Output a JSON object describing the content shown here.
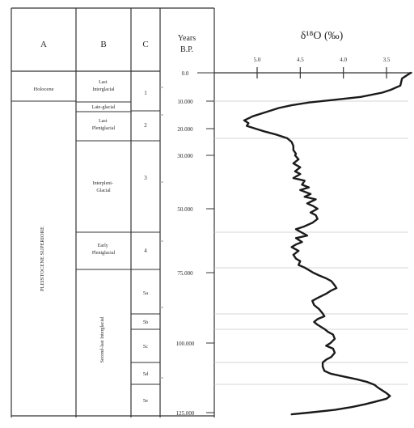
{
  "headers": {
    "col_a": "A",
    "col_b": "B",
    "col_c": "C",
    "years_line1": "Years",
    "years_line2": "B.P.",
    "isotope_title": "δ¹⁸O (‰)"
  },
  "isotope_ticks": [
    "5.0",
    "4.5",
    "4.0",
    "3.5"
  ],
  "epochs": [
    {
      "label": "Holocene"
    },
    {
      "label": "PLEISTOCENE SUPERIORE",
      "vertical": true
    }
  ],
  "phases": [
    {
      "label": "Last Interglacial",
      "lines": [
        "Last",
        "Interglacial"
      ]
    },
    {
      "label": "Late-glacial",
      "lines": [
        "Late-glacial"
      ]
    },
    {
      "label": "Last Pleniglacial",
      "lines": [
        "Last",
        "Pleniglacial"
      ]
    },
    {
      "label": "Interpleni-Glacial",
      "lines": [
        "Interpleni-",
        "Glacial"
      ]
    },
    {
      "label": "Early Pleniglacial",
      "lines": [
        "Early",
        "Pleniglacial"
      ]
    },
    {
      "label": "Second-last Interglacial",
      "lines": [
        "Second-last Interglacial"
      ],
      "vertical": true
    }
  ],
  "stages": [
    "1",
    "2",
    "3",
    "4",
    "5a",
    "5b",
    "5c",
    "5d",
    "5e"
  ],
  "years": [
    "0.0",
    "10.000",
    "20.000",
    "30.000",
    "50.000",
    "75.000",
    "100.000",
    "125.000"
  ],
  "chart_data": {
    "type": "line",
    "title": "δ¹⁸O (‰)",
    "xlabel": "δ¹⁸O (‰)",
    "ylabel": "Years B.P.",
    "x_ticks": [
      5.0,
      4.5,
      4.0,
      3.5
    ],
    "xlim": [
      5.25,
      3.2
    ],
    "y_ticks": [
      0,
      10000,
      20000,
      30000,
      50000,
      75000,
      100000,
      125000
    ],
    "y_axis_piecewise": true,
    "series": [
      {
        "points": [
          [
            3.22,
            0
          ],
          [
            3.32,
            2000
          ],
          [
            3.34,
            4500
          ],
          [
            3.45,
            6000
          ],
          [
            3.55,
            7000
          ],
          [
            3.8,
            8500
          ],
          [
            4.1,
            9500
          ],
          [
            4.4,
            10500
          ],
          [
            4.6,
            11500
          ],
          [
            4.75,
            12500
          ],
          [
            4.9,
            14000
          ],
          [
            5.05,
            15500
          ],
          [
            5.15,
            17000
          ],
          [
            5.1,
            18000
          ],
          [
            5.12,
            19000
          ],
          [
            5.02,
            20000
          ],
          [
            4.92,
            21000
          ],
          [
            4.78,
            22200
          ],
          [
            4.65,
            23600
          ],
          [
            4.6,
            25000
          ],
          [
            4.58,
            26500
          ],
          [
            4.58,
            28000
          ],
          [
            4.55,
            29400
          ],
          [
            4.56,
            30000
          ],
          [
            4.52,
            31500
          ],
          [
            4.58,
            33000
          ],
          [
            4.5,
            34500
          ],
          [
            4.56,
            36000
          ],
          [
            4.5,
            37000
          ],
          [
            4.58,
            38500
          ],
          [
            4.45,
            39500
          ],
          [
            4.48,
            41000
          ],
          [
            4.4,
            42000
          ],
          [
            4.5,
            43000
          ],
          [
            4.38,
            44500
          ],
          [
            4.45,
            45500
          ],
          [
            4.32,
            46500
          ],
          [
            4.42,
            48000
          ],
          [
            4.35,
            49000
          ],
          [
            4.3,
            50000
          ],
          [
            4.38,
            51500
          ],
          [
            4.32,
            52500
          ],
          [
            4.3,
            54000
          ],
          [
            4.36,
            55500
          ],
          [
            4.46,
            57000
          ],
          [
            4.55,
            58000
          ],
          [
            4.5,
            59000
          ],
          [
            4.42,
            60500
          ],
          [
            4.55,
            61500
          ],
          [
            4.48,
            63000
          ],
          [
            4.55,
            64000
          ],
          [
            4.6,
            65000
          ],
          [
            4.52,
            66500
          ],
          [
            4.58,
            68000
          ],
          [
            4.55,
            69500
          ],
          [
            4.5,
            70500
          ],
          [
            4.52,
            72000
          ],
          [
            4.45,
            73000
          ],
          [
            4.4,
            74000
          ],
          [
            4.35,
            75000
          ],
          [
            4.28,
            76000
          ],
          [
            4.2,
            77000
          ],
          [
            4.14,
            78000
          ],
          [
            4.1,
            79500
          ],
          [
            4.08,
            80500
          ],
          [
            4.15,
            81500
          ],
          [
            4.2,
            82500
          ],
          [
            4.3,
            84000
          ],
          [
            4.36,
            85000
          ],
          [
            4.34,
            86500
          ],
          [
            4.28,
            88000
          ],
          [
            4.24,
            89500
          ],
          [
            4.22,
            90500
          ],
          [
            4.3,
            91500
          ],
          [
            4.34,
            92500
          ],
          [
            4.3,
            93500
          ],
          [
            4.22,
            95000
          ],
          [
            4.18,
            96000
          ],
          [
            4.12,
            97000
          ],
          [
            4.1,
            98500
          ],
          [
            4.15,
            100000
          ],
          [
            4.2,
            101000
          ],
          [
            4.12,
            102000
          ],
          [
            4.1,
            103500
          ],
          [
            4.14,
            105000
          ],
          [
            4.2,
            106000
          ],
          [
            4.24,
            107000
          ],
          [
            4.24,
            108500
          ],
          [
            4.22,
            110000
          ],
          [
            4.15,
            111000
          ],
          [
            4.0,
            112000
          ],
          [
            3.85,
            113000
          ],
          [
            3.72,
            114000
          ],
          [
            3.64,
            115000
          ],
          [
            3.6,
            116000
          ],
          [
            3.55,
            117000
          ],
          [
            3.5,
            118000
          ],
          [
            3.46,
            119000
          ],
          [
            3.5,
            120000
          ],
          [
            3.62,
            121000
          ],
          [
            3.75,
            122000
          ],
          [
            3.9,
            123000
          ],
          [
            4.1,
            124000
          ],
          [
            4.4,
            125000
          ],
          [
            4.6,
            125600
          ]
        ]
      }
    ]
  }
}
